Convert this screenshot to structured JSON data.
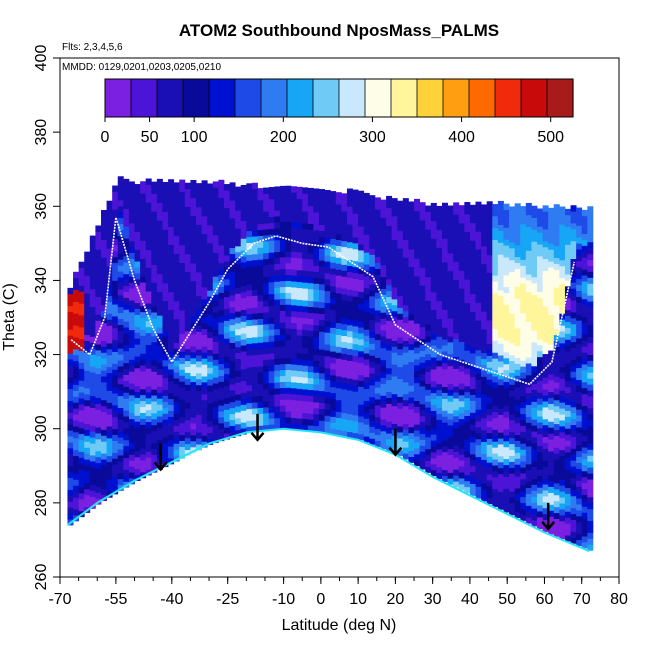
{
  "chart_data": {
    "type": "heatmap",
    "title": "ATOM2 Southbound NposMass_PALMS",
    "subtitle_flights": "Flts: 2,3,4,5,6",
    "subtitle_dates": "MMDD: 0129,0201,0203,0205,0210",
    "xlabel": "Latitude (deg N)",
    "ylabel": "Theta (C)",
    "xlim": [
      -70,
      80
    ],
    "ylim": [
      260,
      400
    ],
    "x_ticks": [
      -70,
      -55,
      -40,
      -25,
      -10,
      0,
      10,
      20,
      30,
      40,
      50,
      60,
      70,
      80
    ],
    "y_ticks": [
      260,
      280,
      300,
      320,
      340,
      360,
      380,
      400
    ],
    "colorbar": {
      "range": [
        0,
        525
      ],
      "ticks": [
        0,
        50,
        100,
        200,
        300,
        400,
        500
      ],
      "colors": [
        "#7b1fe0",
        "#4b14d6",
        "#1a0fb5",
        "#0a0a9a",
        "#0010d0",
        "#1e4be8",
        "#2f7cf2",
        "#16a6f5",
        "#6fcaf5",
        "#c9e8fb",
        "#fdfde8",
        "#fff59a",
        "#ffd23a",
        "#ff9e10",
        "#ff6a00",
        "#f02a0a",
        "#c80a0a",
        "#a81b1b"
      ]
    },
    "tropopause_theta": [
      {
        "x": -67,
        "y": 324
      },
      {
        "x": -62,
        "y": 320
      },
      {
        "x": -58,
        "y": 330
      },
      {
        "x": -55,
        "y": 357
      },
      {
        "x": -50,
        "y": 340
      },
      {
        "x": -45,
        "y": 327
      },
      {
        "x": -40,
        "y": 318
      },
      {
        "x": -35,
        "y": 326
      },
      {
        "x": -30,
        "y": 334
      },
      {
        "x": -25,
        "y": 343
      },
      {
        "x": -18,
        "y": 350
      },
      {
        "x": -12,
        "y": 352
      },
      {
        "x": -5,
        "y": 350
      },
      {
        "x": 2,
        "y": 349
      },
      {
        "x": 8,
        "y": 345
      },
      {
        "x": 14,
        "y": 341
      },
      {
        "x": 20,
        "y": 328
      },
      {
        "x": 26,
        "y": 324
      },
      {
        "x": 32,
        "y": 320
      },
      {
        "x": 38,
        "y": 318
      },
      {
        "x": 44,
        "y": 316
      },
      {
        "x": 50,
        "y": 314
      },
      {
        "x": 56,
        "y": 312
      },
      {
        "x": 62,
        "y": 318
      },
      {
        "x": 68,
        "y": 345
      }
    ],
    "surface_envelope": [
      {
        "x": -68,
        "y": 274
      },
      {
        "x": -60,
        "y": 280
      },
      {
        "x": -50,
        "y": 286
      },
      {
        "x": -40,
        "y": 291
      },
      {
        "x": -30,
        "y": 296
      },
      {
        "x": -20,
        "y": 299
      },
      {
        "x": -10,
        "y": 300
      },
      {
        "x": 0,
        "y": 299
      },
      {
        "x": 10,
        "y": 297
      },
      {
        "x": 20,
        "y": 293
      },
      {
        "x": 30,
        "y": 287
      },
      {
        "x": 40,
        "y": 282
      },
      {
        "x": 50,
        "y": 277
      },
      {
        "x": 60,
        "y": 272
      },
      {
        "x": 72,
        "y": 267
      }
    ],
    "top_envelope": [
      {
        "x": -68,
        "y": 338
      },
      {
        "x": -60,
        "y": 355
      },
      {
        "x": -55,
        "y": 368
      },
      {
        "x": -50,
        "y": 366
      },
      {
        "x": -40,
        "y": 366
      },
      {
        "x": -30,
        "y": 366
      },
      {
        "x": -20,
        "y": 365
      },
      {
        "x": -10,
        "y": 364
      },
      {
        "x": 0,
        "y": 364
      },
      {
        "x": 10,
        "y": 363
      },
      {
        "x": 20,
        "y": 361
      },
      {
        "x": 30,
        "y": 360
      },
      {
        "x": 40,
        "y": 360
      },
      {
        "x": 50,
        "y": 360
      },
      {
        "x": 60,
        "y": 359
      },
      {
        "x": 70,
        "y": 359
      }
    ],
    "arrows": [
      {
        "x": -43,
        "y_top": 296,
        "y_tip": 289
      },
      {
        "x": -17,
        "y_top": 304,
        "y_tip": 297
      },
      {
        "x": 20,
        "y_top": 300,
        "y_tip": 293
      },
      {
        "x": 61,
        "y_top": 280,
        "y_tip": 273
      }
    ]
  }
}
